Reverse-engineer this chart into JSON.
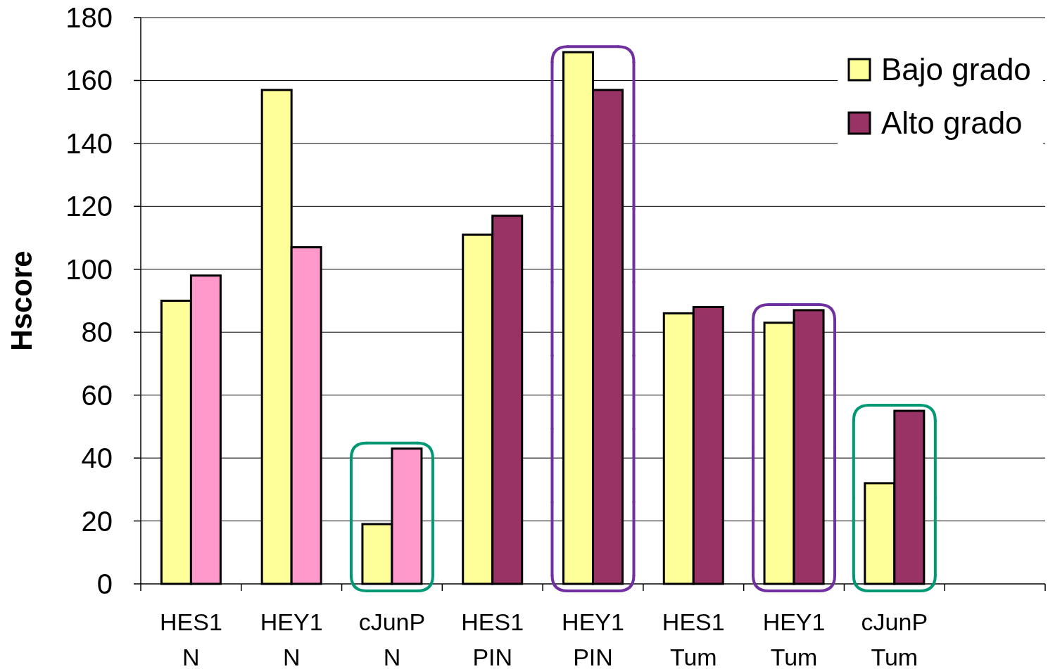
{
  "chart_data": {
    "type": "bar",
    "ylabel": "Hscore",
    "categories": [
      "HES1\nN",
      "HEY1\nN",
      "cJunP\nN",
      "HES1\nPIN",
      "HEY1\nPIN",
      "HES1\nTum",
      "HEY1\nTum",
      "cJunP\nTum",
      null
    ],
    "series": [
      {
        "name": "Bajo grado",
        "color": "#ffff99",
        "values": [
          90,
          157,
          19,
          111,
          169,
          86,
          83,
          32,
          null
        ]
      },
      {
        "name": "Alto grado",
        "colors": [
          "#ff99cc",
          "#ff99cc",
          "#ff99cc",
          "#993366",
          "#993366",
          "#993366",
          "#993366",
          "#993366",
          "#993366"
        ],
        "values": [
          98,
          107,
          43,
          117,
          157,
          88,
          87,
          55,
          null
        ]
      }
    ],
    "ylim": [
      0,
      180
    ],
    "yticks": [
      0,
      20,
      40,
      60,
      80,
      100,
      120,
      140,
      160,
      180
    ],
    "grid": "y",
    "legend": "top right"
  }
}
